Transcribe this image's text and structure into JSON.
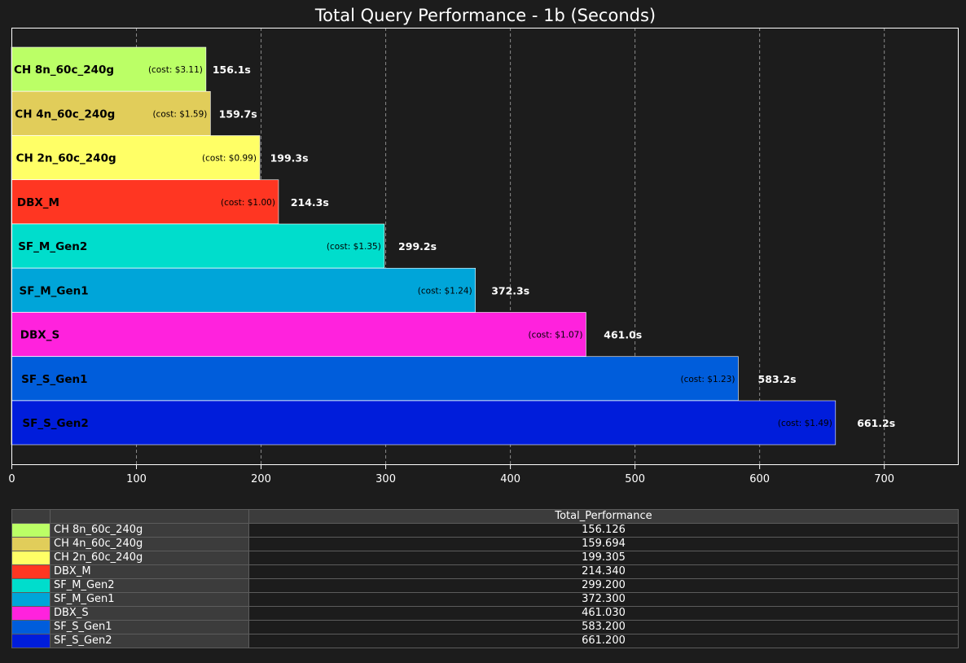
{
  "chart_data": {
    "type": "bar",
    "orientation": "horizontal",
    "title": "Total Query Performance - 1b (Seconds)",
    "xlim": [
      0,
      760
    ],
    "xticks": [
      0,
      100,
      200,
      300,
      400,
      500,
      600,
      700
    ],
    "grid": "vertical dashed",
    "categories": [
      "CH 8n_60c_240g",
      "CH 4n_60c_240g",
      "CH 2n_60c_240g",
      "DBX_M",
      "SF_M_Gen2",
      "SF_M_Gen1",
      "DBX_S",
      "SF_S_Gen1",
      "SF_S_Gen2"
    ],
    "values": [
      156.1,
      159.7,
      199.3,
      214.3,
      299.2,
      372.3,
      461.0,
      583.2,
      661.2
    ],
    "value_labels": [
      "156.1s",
      "159.7s",
      "199.3s",
      "214.3s",
      "299.2s",
      "372.3s",
      "461.0s",
      "583.2s",
      "661.2s"
    ],
    "cost_labels": [
      "(cost: $3.11)",
      "(cost: $1.59)",
      "(cost: $0.99)",
      "(cost: $1.00)",
      "(cost: $1.35)",
      "(cost: $1.24)",
      "(cost: $1.07)",
      "(cost: $1.23)",
      "(cost: $1.49)"
    ],
    "colors": [
      "#bbff66",
      "#e1cd5a",
      "#ffff66",
      "#ff3622",
      "#00ddcc",
      "#00a5d9",
      "#ff22dd",
      "#005ddb",
      "#001ddb"
    ]
  },
  "table": {
    "column_header": "Total_Performance",
    "rows": [
      {
        "name": "CH 8n_60c_240g",
        "value": "156.126"
      },
      {
        "name": "CH 4n_60c_240g",
        "value": "159.694"
      },
      {
        "name": "CH 2n_60c_240g",
        "value": "199.305"
      },
      {
        "name": "DBX_M",
        "value": "214.340"
      },
      {
        "name": "SF_M_Gen2",
        "value": "299.200"
      },
      {
        "name": "SF_M_Gen1",
        "value": "372.300"
      },
      {
        "name": "DBX_S",
        "value": "461.030"
      },
      {
        "name": "SF_S_Gen1",
        "value": "583.200"
      },
      {
        "name": "SF_S_Gen2",
        "value": "661.200"
      }
    ]
  }
}
